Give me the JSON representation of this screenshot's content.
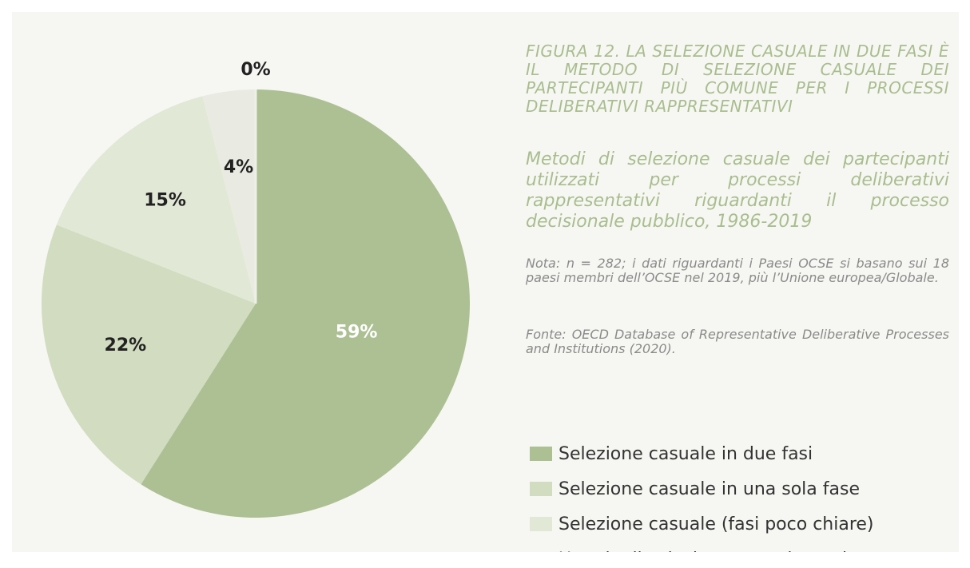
{
  "chart_data": {
    "type": "pie",
    "title": "FIGURA 12. LA SELEZIONE CASUALE IN DUE FASI È IL METODO DI SELEZIONE CASUALE DEI PARTECIPANTI PIÙ COMUNE PER I PROCESSI DELIBERATIVI RAPPRESENTATIVI",
    "subtitle": "Metodi di selezione casuale dei partecipanti utilizzati per processi deliberativi rappresentativi riguardanti il processo decisionale pubblico, 1986-2019",
    "notes": [
      "Nota: n = 282; i dati riguardanti i Paesi OCSE si basano sui 18 paesi membri dell’OCSE nel 2019, più l’Unione europea/Globale.",
      "Fonte: OECD Database of Representative Deliberative Processes and Institutions (2020)."
    ],
    "categories": [
      "Selezione casuale in due fasi",
      "Selezione casuale in una sola fase",
      "Selezione casuale (fasi poco chiare)",
      "Un mix di selezione casuale e mirata",
      null
    ],
    "values": [
      59,
      22,
      15,
      4,
      0
    ],
    "value_labels": [
      "59%",
      "22%",
      "15%",
      "4%",
      "0%"
    ],
    "colors": [
      "#adc094",
      "#d2dcc0",
      "#e1e8d6",
      "#e9ebe2",
      "#eef0e8"
    ]
  }
}
